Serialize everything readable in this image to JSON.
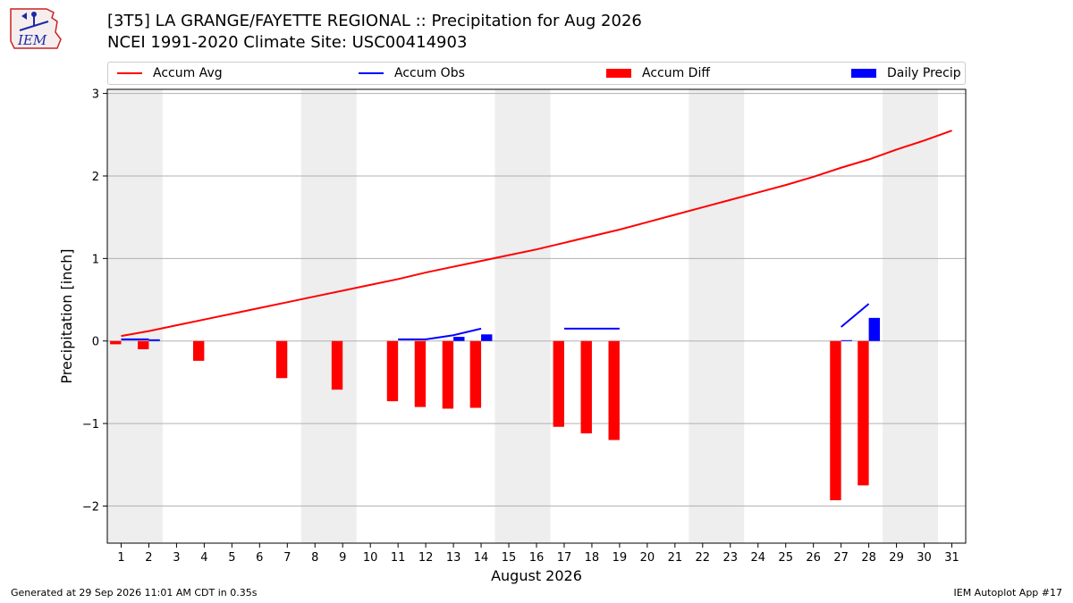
{
  "title": "[3T5] LA GRANGE/FAYETTE REGIONAL :: Precipitation for Aug 2026",
  "subtitle": "NCEI 1991-2020 Climate Site: USC00414903",
  "logo_text": "IEM",
  "legend": [
    {
      "label": "Accum Avg",
      "color": "#ff0000",
      "kind": "line"
    },
    {
      "label": "Accum Obs",
      "color": "#0000ff",
      "kind": "line"
    },
    {
      "label": "Accum Diff",
      "color": "#ff0000",
      "kind": "box"
    },
    {
      "label": "Daily Precip",
      "color": "#0000ff",
      "kind": "box"
    }
  ],
  "footer_left": "Generated at 29 Sep 2026 11:01 AM CDT in 0.35s",
  "footer_right": "IEM Autoplot App #17",
  "chart_data": {
    "type": "bar",
    "xlabel": "August 2026",
    "ylabel": "Precipitation [inch]",
    "x": [
      1,
      2,
      3,
      4,
      5,
      6,
      7,
      8,
      9,
      10,
      11,
      12,
      13,
      14,
      15,
      16,
      17,
      18,
      19,
      20,
      21,
      22,
      23,
      24,
      25,
      26,
      27,
      28,
      29,
      30,
      31
    ],
    "xlim": [
      0.5,
      31.5
    ],
    "ylim": [
      -2.45,
      3.05
    ],
    "yticks": [
      -2,
      -1,
      0,
      1,
      2,
      3
    ],
    "ytick_labels": [
      "−2",
      "−1",
      "0",
      "1",
      "2",
      "3"
    ],
    "grid": "horizontal",
    "weekend_shading": [
      [
        0.5,
        2.5
      ],
      [
        7.5,
        9.5
      ],
      [
        14.5,
        16.5
      ],
      [
        21.5,
        23.5
      ],
      [
        28.5,
        30.5
      ]
    ],
    "series": [
      {
        "name": "Accum Avg",
        "type": "line",
        "color": "#ff0000",
        "x": [
          1,
          2,
          3,
          4,
          5,
          6,
          7,
          8,
          9,
          10,
          11,
          12,
          13,
          14,
          15,
          16,
          17,
          18,
          19,
          20,
          21,
          22,
          23,
          24,
          25,
          26,
          27,
          28,
          29,
          30,
          31
        ],
        "values": [
          0.06,
          0.12,
          0.19,
          0.26,
          0.33,
          0.4,
          0.47,
          0.54,
          0.61,
          0.68,
          0.75,
          0.83,
          0.9,
          0.97,
          1.04,
          1.11,
          1.19,
          1.27,
          1.35,
          1.44,
          1.53,
          1.62,
          1.71,
          1.8,
          1.89,
          1.99,
          2.1,
          2.2,
          2.32,
          2.43,
          2.55
        ]
      },
      {
        "name": "Accum Obs",
        "type": "line",
        "color": "#0000ff",
        "segments": [
          {
            "x": [
              1,
              2
            ],
            "values": [
              0.02,
              0.02
            ]
          },
          {
            "x": [
              11,
              12,
              13,
              14
            ],
            "values": [
              0.02,
              0.02,
              0.07,
              0.15
            ]
          },
          {
            "x": [
              17,
              18,
              19
            ],
            "values": [
              0.15,
              0.15,
              0.15
            ]
          },
          {
            "x": [
              27,
              28
            ],
            "values": [
              0.17,
              0.45
            ]
          }
        ]
      },
      {
        "name": "Accum Diff",
        "type": "bar",
        "color": "#ff0000",
        "x": [
          1,
          2,
          4,
          7,
          9,
          11,
          12,
          13,
          14,
          17,
          18,
          19,
          27,
          28
        ],
        "values": [
          -0.04,
          -0.1,
          -0.24,
          -0.45,
          -0.59,
          -0.73,
          -0.8,
          -0.82,
          -0.81,
          -1.04,
          -1.12,
          -1.2,
          -1.93,
          -1.75
        ]
      },
      {
        "name": "Daily Precip",
        "type": "bar",
        "color": "#0000ff",
        "x": [
          2,
          13,
          14,
          27,
          28
        ],
        "values": [
          0.02,
          0.05,
          0.08,
          0.01,
          0.28
        ]
      }
    ]
  }
}
